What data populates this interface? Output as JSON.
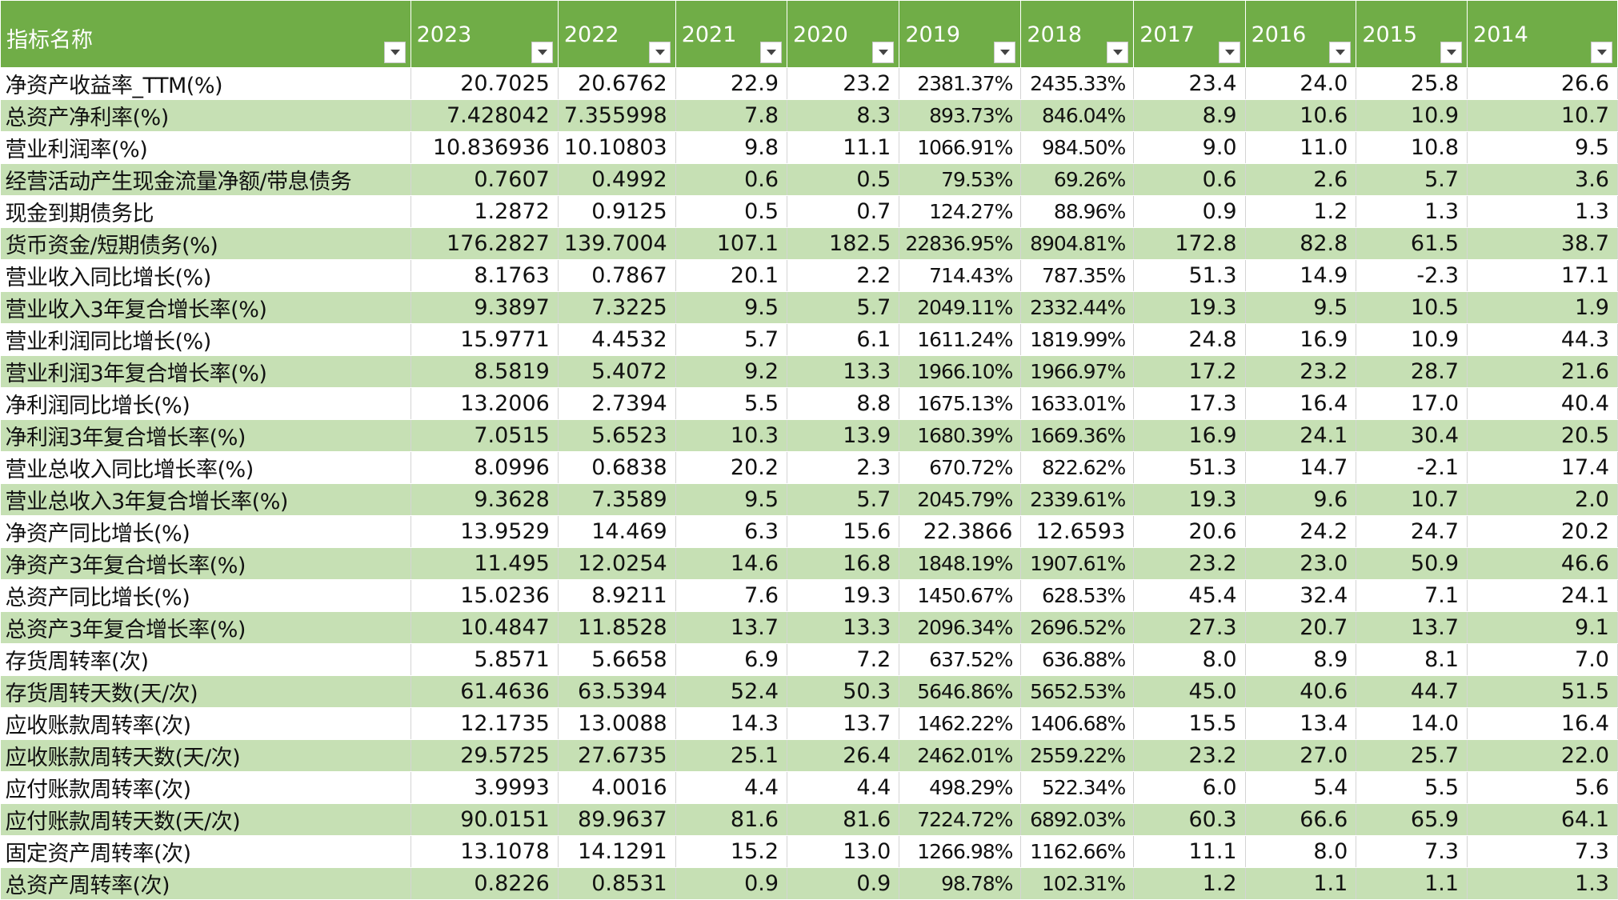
{
  "sheet": {
    "columns": [
      "指标名称",
      "2023",
      "2022",
      "2021",
      "2020",
      "2019",
      "2018",
      "2017",
      "2016",
      "2015",
      "2014"
    ],
    "rows": [
      [
        "净资产收益率_TTM(%)",
        "20.7025",
        "20.6762",
        "22.9",
        "23.2",
        "2381.37%",
        "2435.33%",
        "23.4",
        "24.0",
        "25.8",
        "26.6"
      ],
      [
        "总资产净利率(%)",
        "7.428042",
        "7.355998",
        "7.8",
        "8.3",
        "893.73%",
        "846.04%",
        "8.9",
        "10.6",
        "10.9",
        "10.7"
      ],
      [
        "营业利润率(%)",
        "10.836936",
        "10.10803",
        "9.8",
        "11.1",
        "1066.91%",
        "984.50%",
        "9.0",
        "11.0",
        "10.8",
        "9.5"
      ],
      [
        "经营活动产生现金流量净额/带息债务",
        "0.7607",
        "0.4992",
        "0.6",
        "0.5",
        "79.53%",
        "69.26%",
        "0.6",
        "2.6",
        "5.7",
        "3.6"
      ],
      [
        "现金到期债务比",
        "1.2872",
        "0.9125",
        "0.5",
        "0.7",
        "124.27%",
        "88.96%",
        "0.9",
        "1.2",
        "1.3",
        "1.3"
      ],
      [
        "货币资金/短期债务(%)",
        "176.2827",
        "139.7004",
        "107.1",
        "182.5",
        "22836.95%",
        "8904.81%",
        "172.8",
        "82.8",
        "61.5",
        "38.7"
      ],
      [
        "营业收入同比增长(%)",
        "8.1763",
        "0.7867",
        "20.1",
        "2.2",
        "714.43%",
        "787.35%",
        "51.3",
        "14.9",
        "-2.3",
        "17.1"
      ],
      [
        "营业收入3年复合增长率(%)",
        "9.3897",
        "7.3225",
        "9.5",
        "5.7",
        "2049.11%",
        "2332.44%",
        "19.3",
        "9.5",
        "10.5",
        "1.9"
      ],
      [
        "营业利润同比增长(%)",
        "15.9771",
        "4.4532",
        "5.7",
        "6.1",
        "1611.24%",
        "1819.99%",
        "24.8",
        "16.9",
        "10.9",
        "44.3"
      ],
      [
        "营业利润3年复合增长率(%)",
        "8.5819",
        "5.4072",
        "9.2",
        "13.3",
        "1966.10%",
        "1966.97%",
        "17.2",
        "23.2",
        "28.7",
        "21.6"
      ],
      [
        "净利润同比增长(%)",
        "13.2006",
        "2.7394",
        "5.5",
        "8.8",
        "1675.13%",
        "1633.01%",
        "17.3",
        "16.4",
        "17.0",
        "40.4"
      ],
      [
        "净利润3年复合增长率(%)",
        "7.0515",
        "5.6523",
        "10.3",
        "13.9",
        "1680.39%",
        "1669.36%",
        "16.9",
        "24.1",
        "30.4",
        "20.5"
      ],
      [
        "营业总收入同比增长率(%)",
        "8.0996",
        "0.6838",
        "20.2",
        "2.3",
        "670.72%",
        "822.62%",
        "51.3",
        "14.7",
        "-2.1",
        "17.4"
      ],
      [
        "营业总收入3年复合增长率(%)",
        "9.3628",
        "7.3589",
        "9.5",
        "5.7",
        "2045.79%",
        "2339.61%",
        "19.3",
        "9.6",
        "10.7",
        "2.0"
      ],
      [
        "净资产同比增长(%)",
        "13.9529",
        "14.469",
        "6.3",
        "15.6",
        "22.3866",
        "12.6593",
        "20.6",
        "24.2",
        "24.7",
        "20.2"
      ],
      [
        "净资产3年复合增长率(%)",
        "11.495",
        "12.0254",
        "14.6",
        "16.8",
        "1848.19%",
        "1907.61%",
        "23.2",
        "23.0",
        "50.9",
        "46.6"
      ],
      [
        "总资产同比增长(%)",
        "15.0236",
        "8.9211",
        "7.6",
        "19.3",
        "1450.67%",
        "628.53%",
        "45.4",
        "32.4",
        "7.1",
        "24.1"
      ],
      [
        "总资产3年复合增长率(%)",
        "10.4847",
        "11.8528",
        "13.7",
        "13.3",
        "2096.34%",
        "2696.52%",
        "27.3",
        "20.7",
        "13.7",
        "9.1"
      ],
      [
        "存货周转率(次)",
        "5.8571",
        "5.6658",
        "6.9",
        "7.2",
        "637.52%",
        "636.88%",
        "8.0",
        "8.9",
        "8.1",
        "7.0"
      ],
      [
        "存货周转天数(天/次)",
        "61.4636",
        "63.5394",
        "52.4",
        "50.3",
        "5646.86%",
        "5652.53%",
        "45.0",
        "40.6",
        "44.7",
        "51.5"
      ],
      [
        "应收账款周转率(次)",
        "12.1735",
        "13.0088",
        "14.3",
        "13.7",
        "1462.22%",
        "1406.68%",
        "15.5",
        "13.4",
        "14.0",
        "16.4"
      ],
      [
        "应收账款周转天数(天/次)",
        "29.5725",
        "27.6735",
        "25.1",
        "26.4",
        "2462.01%",
        "2559.22%",
        "23.2",
        "27.0",
        "25.7",
        "22.0"
      ],
      [
        "应付账款周转率(次)",
        "3.9993",
        "4.0016",
        "4.4",
        "4.4",
        "498.29%",
        "522.34%",
        "6.0",
        "5.4",
        "5.5",
        "5.6"
      ],
      [
        "应付账款周转天数(天/次)",
        "90.0151",
        "89.9637",
        "81.6",
        "81.6",
        "7224.72%",
        "6892.03%",
        "60.3",
        "66.6",
        "65.9",
        "64.1"
      ],
      [
        "固定资产周转率(次)",
        "13.1078",
        "14.1291",
        "15.2",
        "13.0",
        "1266.98%",
        "1162.66%",
        "11.1",
        "8.0",
        "7.3",
        "7.3"
      ],
      [
        "总资产周转率(次)",
        "0.8226",
        "0.8531",
        "0.9",
        "0.9",
        "98.78%",
        "102.31%",
        "1.2",
        "1.1",
        "1.1",
        "1.3"
      ]
    ],
    "colors": {
      "header_bg": "#70ad47",
      "band_bg": "#c6e0b4",
      "text": "#111111"
    },
    "icons": {
      "filter": "filter-dropdown-icon"
    }
  }
}
